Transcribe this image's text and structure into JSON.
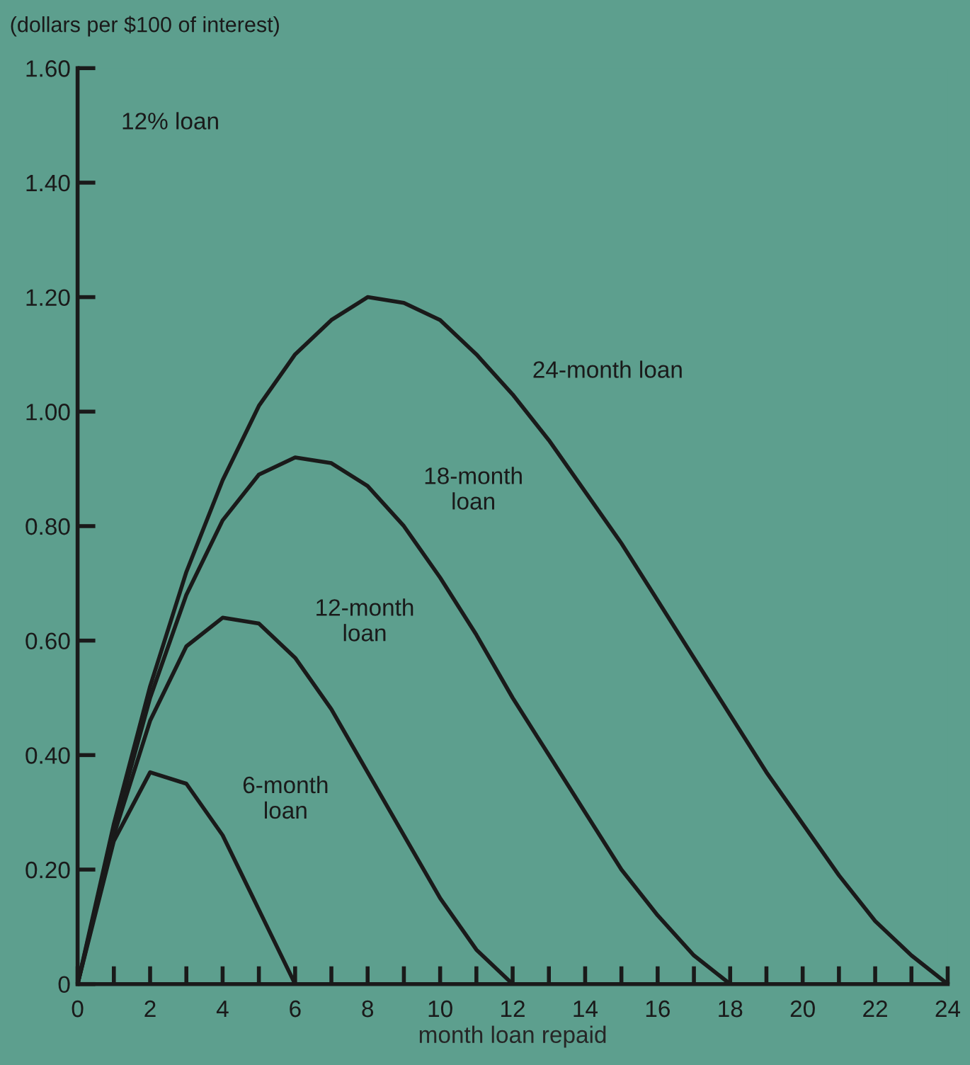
{
  "chart_data": {
    "type": "line",
    "ylabel": "(dollars per $100 of interest)",
    "xlabel": "month loan repaid",
    "annotations": [
      "12% loan"
    ],
    "series": [
      {
        "name": "24-month loan",
        "color": "#1a1a1a",
        "x": [
          0,
          1,
          2,
          3,
          4,
          5,
          6,
          7,
          8,
          9,
          10,
          11,
          12,
          13,
          14,
          15,
          16,
          17,
          18,
          19,
          20,
          21,
          22,
          23,
          24
        ],
        "values": [
          0,
          0.28,
          0.52,
          0.72,
          0.88,
          1.01,
          1.1,
          1.16,
          1.2,
          1.19,
          1.16,
          1.1,
          1.03,
          0.95,
          0.86,
          0.77,
          0.67,
          0.57,
          0.47,
          0.37,
          0.28,
          0.19,
          0.11,
          0.05,
          0
        ]
      },
      {
        "name": "18-month\nloan",
        "color": "#1a1a1a",
        "x": [
          0,
          1,
          2,
          3,
          4,
          5,
          6,
          7,
          8,
          9,
          10,
          11,
          12,
          13,
          14,
          15,
          16,
          17,
          18
        ],
        "values": [
          0,
          0.27,
          0.5,
          0.68,
          0.81,
          0.89,
          0.92,
          0.91,
          0.87,
          0.8,
          0.71,
          0.61,
          0.5,
          0.4,
          0.3,
          0.2,
          0.12,
          0.05,
          0
        ]
      },
      {
        "name": "12-month\nloan",
        "color": "#1a1a1a",
        "x": [
          0,
          1,
          2,
          3,
          4,
          5,
          6,
          7,
          8,
          9,
          10,
          11,
          12
        ],
        "values": [
          0,
          0.26,
          0.46,
          0.59,
          0.64,
          0.63,
          0.57,
          0.48,
          0.37,
          0.26,
          0.15,
          0.06,
          0
        ]
      },
      {
        "name": "6-month\nloan",
        "color": "#1a1a1a",
        "x": [
          0,
          1,
          2,
          3,
          4,
          5,
          6
        ],
        "values": [
          0,
          0.25,
          0.37,
          0.35,
          0.26,
          0.13,
          0
        ]
      }
    ],
    "xlim": [
      0,
      24
    ],
    "xticks": [
      0,
      {
        "value": 1,
        "label": null
      },
      2,
      {
        "value": 3,
        "label": null
      },
      4,
      {
        "value": 5,
        "label": null
      },
      6,
      {
        "value": 7,
        "label": null
      },
      8,
      {
        "value": 9,
        "label": null
      },
      10,
      {
        "value": 11,
        "label": null
      },
      12,
      {
        "value": 13,
        "label": null
      },
      14,
      {
        "value": 15,
        "label": null
      },
      16,
      {
        "value": 17,
        "label": null
      },
      18,
      {
        "value": 19,
        "label": null
      },
      20,
      {
        "value": 21,
        "label": null
      },
      22,
      {
        "value": 23,
        "label": null
      },
      24
    ],
    "ylim": [
      0,
      1.6
    ],
    "yticks": [
      0,
      {
        "value": 0.2,
        "label": "0.20"
      },
      {
        "value": 0.4,
        "label": "0.40"
      },
      {
        "value": 0.6,
        "label": "0.60"
      },
      {
        "value": 0.8,
        "label": "0.80"
      },
      {
        "value": 1.0,
        "label": "1.00"
      },
      {
        "value": 1.2,
        "label": "1.20"
      },
      {
        "value": 1.4,
        "label": "1.40"
      },
      {
        "value": 1.6,
        "label": "1.60"
      }
    ],
    "grid": false,
    "legend": false,
    "marker": "none",
    "line_style": "solid"
  }
}
